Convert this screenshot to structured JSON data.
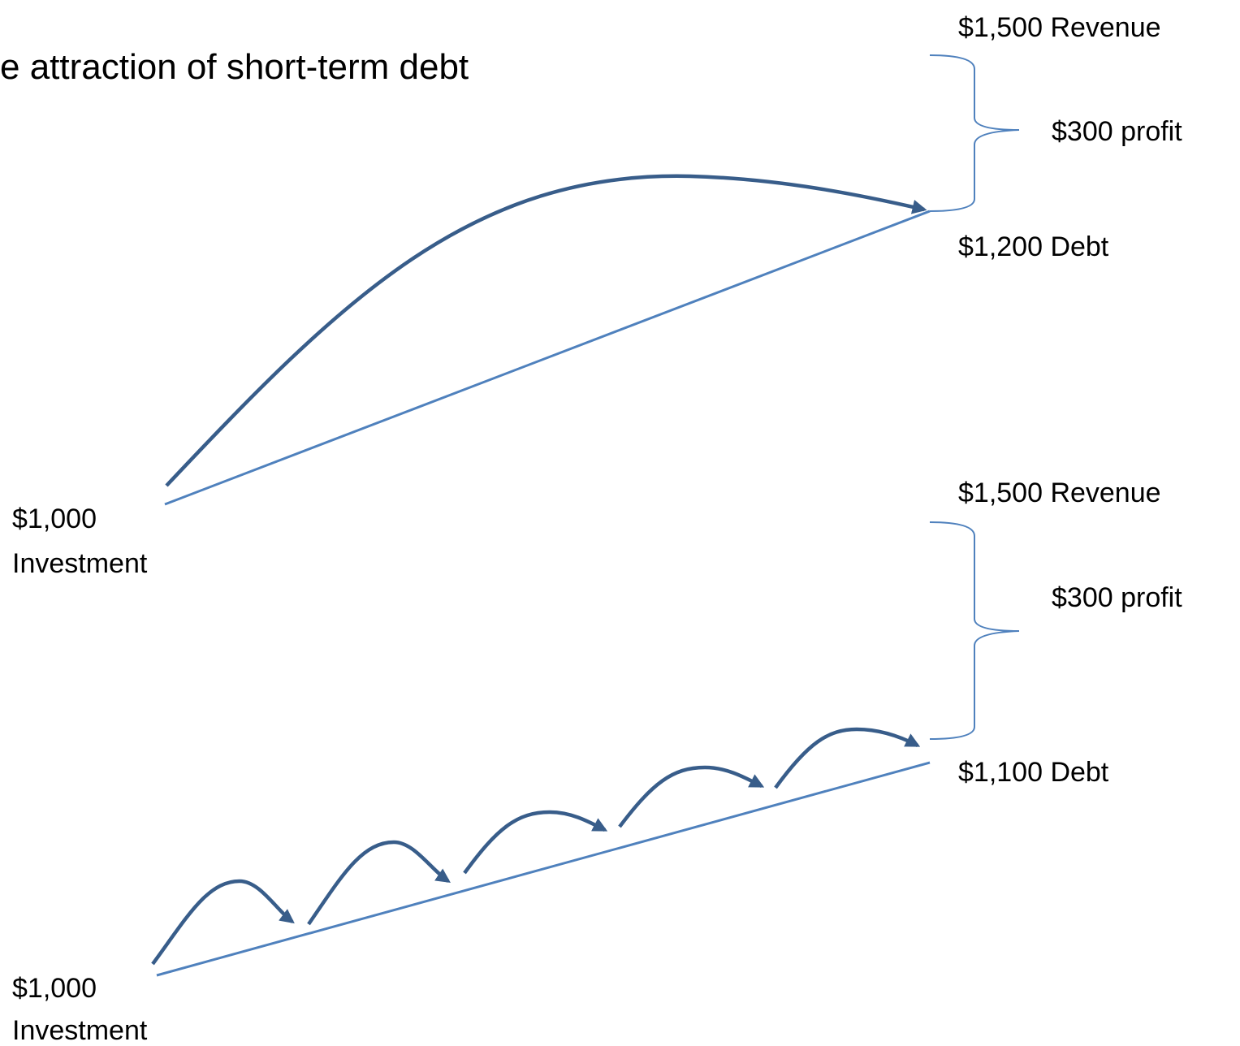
{
  "title": "e attraction of short-term debt",
  "top": {
    "revenue": "$1,500 Revenue",
    "profit": "$300 profit",
    "debt": "$1,200 Debt",
    "investment_amount": "$1,000",
    "investment_label": "Investment"
  },
  "bottom": {
    "revenue": "$1,500 Revenue",
    "profit": "$300 profit",
    "debt": "$1,100 Debt",
    "investment_amount": "$1,000",
    "investment_label": "Investment"
  }
}
